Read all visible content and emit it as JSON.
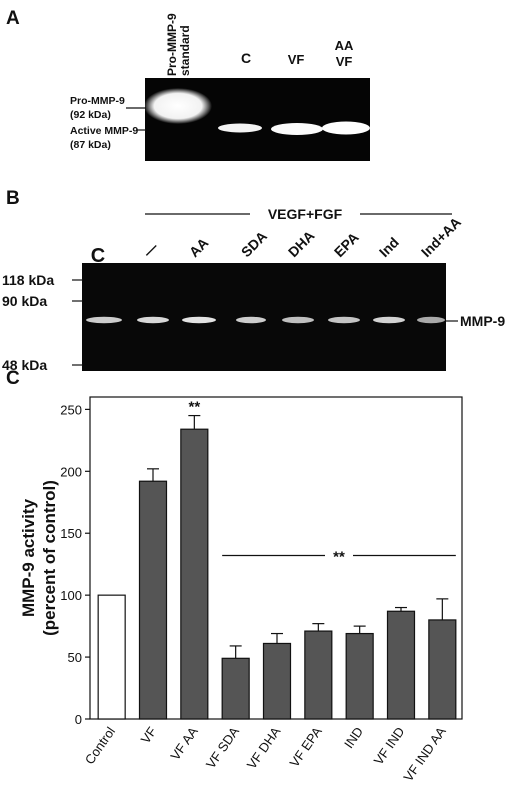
{
  "panel_a": {
    "label": "A",
    "lanes": [
      "Pro-MMP-9\nstandard",
      "C",
      "VF",
      "AA\nVF"
    ],
    "markers": [
      {
        "lines": [
          "Pro-MMP-9",
          "(92 kDa)"
        ]
      },
      {
        "lines": [
          "Active MMP-9",
          "(87 kDa)"
        ]
      }
    ]
  },
  "panel_b": {
    "label": "B",
    "group_label": "VEGF+FGF",
    "lanes": [
      "C",
      "—",
      "AA",
      "SDA",
      "DHA",
      "EPA",
      "Ind",
      "Ind+AA"
    ],
    "markers": [
      "118 kDa",
      "90 kDa",
      "48 kDa"
    ],
    "band_label": "MMP-9"
  },
  "panel_c": {
    "label": "C",
    "significance_label": "**"
  },
  "chart_data": {
    "type": "bar",
    "categories": [
      "Control",
      "VF",
      "VF AA",
      "VF SDA",
      "VF DHA",
      "VF EPA",
      "IND",
      "VF IND",
      "VF IND AA"
    ],
    "values": [
      100,
      192,
      234,
      49,
      61,
      71,
      69,
      87,
      80
    ],
    "errors": [
      0,
      10,
      11,
      10,
      8,
      6,
      6,
      3,
      17
    ],
    "bar_colors": [
      "#ffffff",
      "#555555",
      "#555555",
      "#555555",
      "#555555",
      "#555555",
      "#555555",
      "#555555",
      "#555555"
    ],
    "ylabel": "MMP-9 activity\n(percent of control)",
    "ylim": [
      0,
      260
    ],
    "yticks": [
      0,
      50,
      100,
      150,
      200,
      250
    ],
    "annotations": [
      {
        "text": "**",
        "category": "VF AA"
      },
      {
        "text": "**",
        "spans": [
          "VF SDA",
          "VF IND AA"
        ]
      }
    ]
  }
}
